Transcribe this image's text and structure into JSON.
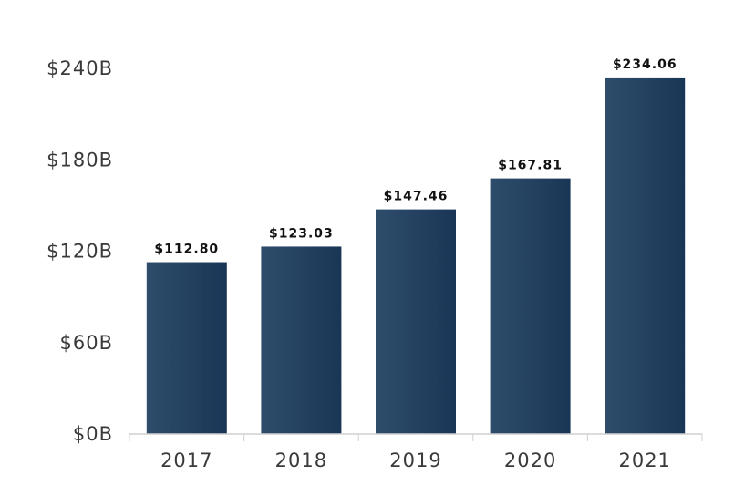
{
  "chart_data": {
    "type": "bar",
    "categories": [
      "2017",
      "2018",
      "2019",
      "2020",
      "2021"
    ],
    "values": [
      112.8,
      123.03,
      147.46,
      167.81,
      234.06
    ],
    "data_labels": [
      "$112.80",
      "$123.03",
      "$147.46",
      "$167.81",
      "$234.06"
    ],
    "ylim": [
      0,
      240
    ],
    "yticks": [
      0,
      60,
      120,
      180,
      240
    ],
    "ytick_labels": [
      "$0B",
      "$60B",
      "$120B",
      "$180B",
      "$240B"
    ],
    "grid": false,
    "legend": "none",
    "colors": {
      "bar_light": "#2e4d6b",
      "bar_dark": "#1a3656",
      "axis": "#d0d0d0"
    }
  }
}
